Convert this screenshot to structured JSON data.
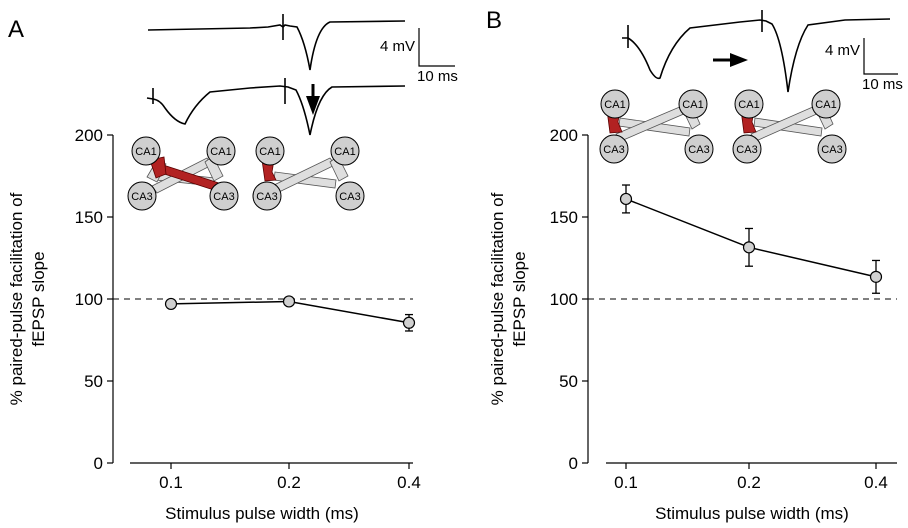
{
  "panels": [
    {
      "letter": "A",
      "scalebar_v": "4 mV",
      "scalebar_h": "10 ms",
      "ylabel_line1": "% paired-pulse facilitation of",
      "ylabel_line2": "fEPSP slope",
      "xlabel": "Stimulus pulse width (ms)"
    },
    {
      "letter": "B",
      "scalebar_v": "4 mV",
      "scalebar_h": "10 ms",
      "ylabel_line1": "% paired-pulse facilitation of",
      "ylabel_line2": "fEPSP slope",
      "xlabel": "Stimulus pulse width (ms)"
    }
  ],
  "cell_labels": {
    "ca1": "CA1",
    "ca3": "CA3"
  },
  "colors": {
    "highlight": "#b22222",
    "cell_fill": "#cfcfcf",
    "axon_fill": "#dedede"
  },
  "chart_data": [
    {
      "type": "line",
      "panel": "A",
      "x": [
        0.1,
        0.2,
        0.4
      ],
      "categories": [
        "0.1",
        "0.2",
        "0.4"
      ],
      "series": [
        {
          "values": [
            97,
            98.5,
            85.5
          ],
          "error": [
            1.5,
            1.5,
            5
          ]
        }
      ],
      "reference_line": 100,
      "yticks": [
        0,
        50,
        100,
        150,
        200
      ],
      "ylim": [
        0,
        200
      ],
      "xlabel": "Stimulus pulse width (ms)",
      "ylabel": "% paired-pulse facilitation of fEPSP slope"
    },
    {
      "type": "line",
      "panel": "B",
      "x": [
        0.1,
        0.2,
        0.4
      ],
      "categories": [
        "0.1",
        "0.2",
        "0.4"
      ],
      "series": [
        {
          "values": [
            161,
            131.5,
            113.5
          ],
          "error": [
            8.5,
            11.5,
            10
          ]
        }
      ],
      "reference_line": 100,
      "yticks": [
        0,
        50,
        100,
        150,
        200
      ],
      "ylim": [
        0,
        200
      ],
      "xlabel": "Stimulus pulse width (ms)",
      "ylabel": "% paired-pulse facilitation of fEPSP slope"
    }
  ]
}
